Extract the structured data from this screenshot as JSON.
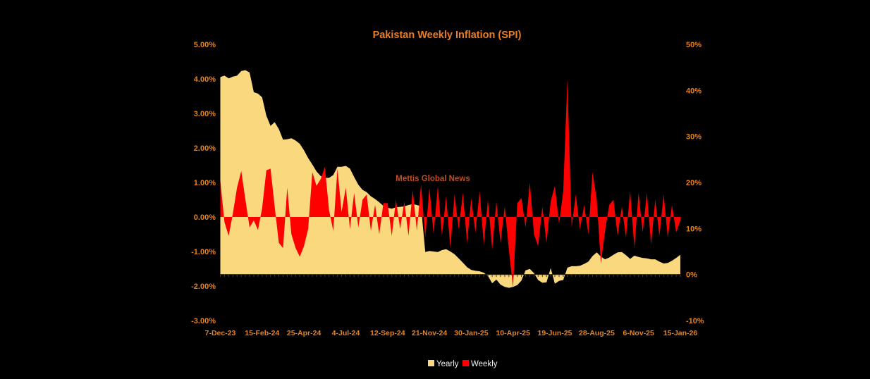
{
  "colors": {
    "background": "#000000",
    "title": "#ED7D23",
    "label": "#E8821F",
    "watermark": "#BF4D1E",
    "legend_text": "#F2F2F2",
    "axis_line": "#1F1F1F",
    "axis_tick": "#3C3C3C"
  },
  "chart": {
    "title": "Pakistan Weekly Inflation (SPI)",
    "watermark": "Mettis Global News",
    "legend": [
      {
        "label": "Yearly",
        "color": "#FAD87E"
      },
      {
        "label": "Weekly",
        "color": "#FE0000"
      }
    ]
  },
  "chart_data": {
    "type": "area",
    "title": "Pakistan Weekly Inflation (SPI)",
    "frequency": "weekly",
    "weeks_total": 111,
    "x_tick_interval_weeks": 10,
    "x_tick_labels": [
      "7-Dec-23",
      "15-Feb-24",
      "25-Apr-24",
      "4-Jul-24",
      "12-Sep-24",
      "21-Nov-24",
      "30-Jan-25",
      "10-Apr-25",
      "19-Jun-25",
      "28-Aug-25",
      "6-Nov-25",
      "15-Jan-26"
    ],
    "left_axis": {
      "ticks": [
        "5.00%",
        "4.00%",
        "3.00%",
        "2.00%",
        "1.00%",
        "0.00%",
        "-1.00%",
        "-2.00%",
        "-3.00%"
      ],
      "max": 5,
      "min": -3,
      "series": "Weekly"
    },
    "right_axis": {
      "ticks": [
        "50%",
        "40%",
        "30%",
        "20%",
        "10%",
        "0%",
        "-10%"
      ],
      "max": 50,
      "min": -10,
      "series": "Yearly"
    },
    "grid": false,
    "legend_position": "bottom",
    "series": [
      {
        "name": "Yearly",
        "axis": "right",
        "color": "#FAD87E",
        "unit": "%",
        "values": [
          42.9,
          43.2,
          42.6,
          43.0,
          43.2,
          44.2,
          44.4,
          43.9,
          39.6,
          39.3,
          38.5,
          34.5,
          32.3,
          33.1,
          31.6,
          29.3,
          29.4,
          29.6,
          29.1,
          28.4,
          27.0,
          25.3,
          23.9,
          22.4,
          21.4,
          21.0,
          21.0,
          21.6,
          23.4,
          23.4,
          23.6,
          23.0,
          21.2,
          19.5,
          18.4,
          17.9,
          17.0,
          16.4,
          15.7,
          14.9,
          14.5,
          14.3,
          14.6,
          14.7,
          14.8,
          15.1,
          15.3,
          15.1,
          14.8,
          4.9,
          5.1,
          5.0,
          4.9,
          5.3,
          5.5,
          5.0,
          4.4,
          3.5,
          2.6,
          1.6,
          1.0,
          0.8,
          0.7,
          0.4,
          -0.3,
          -1.9,
          -1.1,
          -2.2,
          -2.7,
          -2.9,
          -2.7,
          -2.3,
          -1.3,
          0.9,
          1.2,
          0.3,
          -1.2,
          -1.8,
          -1.7,
          1.4,
          -2.0,
          -1.4,
          -1.2,
          1.5,
          1.8,
          1.8,
          1.9,
          2.3,
          2.8,
          4.0,
          4.8,
          3.9,
          3.3,
          3.7,
          4.3,
          4.8,
          4.9,
          4.2,
          3.4,
          4.1,
          3.8,
          3.6,
          3.5,
          3.3,
          3.3,
          2.8,
          2.4,
          2.5,
          3.0,
          3.6,
          4.3
        ]
      },
      {
        "name": "Weekly",
        "axis": "left",
        "color": "#FE0000",
        "unit": "%",
        "values": [
          1.05,
          -0.15,
          -0.55,
          0.1,
          0.85,
          1.33,
          0.5,
          -0.3,
          -0.1,
          -0.38,
          0.25,
          1.35,
          1.4,
          0.3,
          -0.75,
          -0.9,
          0.85,
          -0.5,
          -0.9,
          -1.15,
          -0.85,
          -0.35,
          1.3,
          0.9,
          1.1,
          1.45,
          0.2,
          -0.4,
          1.4,
          0.15,
          0.85,
          -0.35,
          0.7,
          -0.3,
          0.5,
          0.65,
          -0.4,
          0.35,
          -0.5,
          0.4,
          0.4,
          -0.55,
          0.5,
          -0.35,
          0.45,
          -0.55,
          0.78,
          -0.4,
          0.95,
          -0.6,
          0.85,
          -0.5,
          0.9,
          -0.55,
          0.6,
          -0.9,
          0.65,
          -0.35,
          0.7,
          -0.75,
          0.55,
          -0.45,
          0.75,
          -0.8,
          0.5,
          -0.95,
          0.45,
          -0.75,
          0.3,
          -0.95,
          -2.05,
          0.4,
          0.55,
          -0.3,
          1.0,
          -0.5,
          -0.85,
          0.3,
          -0.75,
          0.45,
          0.9,
          -0.2,
          0.75,
          4.0,
          -0.3,
          0.65,
          -0.35,
          0.35,
          -0.5,
          1.3,
          0.5,
          -1.35,
          -0.4,
          0.35,
          0.5,
          -0.55,
          0.3,
          -0.6,
          0.75,
          -0.9,
          0.7,
          -0.45,
          0.7,
          -0.8,
          0.5,
          -0.55,
          0.65,
          -0.6,
          0.35,
          -0.45,
          -0.1
        ]
      }
    ]
  }
}
